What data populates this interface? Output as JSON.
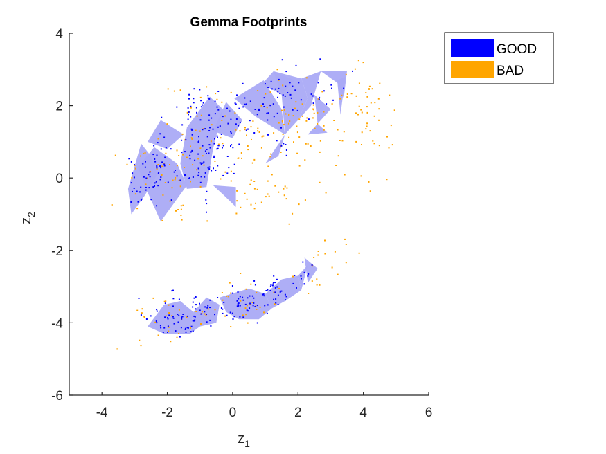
{
  "chart_data": {
    "type": "scatter",
    "title": "Gemma Footprints",
    "xlabel": {
      "base": "z",
      "sub": "1"
    },
    "ylabel": {
      "base": "z",
      "sub": "2"
    },
    "xlim": [
      -5,
      6
    ],
    "ylim": [
      -6,
      4
    ],
    "xticks": [
      -4,
      -2,
      0,
      2,
      4,
      6
    ],
    "yticks": [
      -6,
      -4,
      -2,
      0,
      2,
      4
    ],
    "xtick_labels": [
      "-4",
      "-2",
      "0",
      "2",
      "4",
      "6"
    ],
    "ytick_labels": [
      "-6",
      "-4",
      "-2",
      "0",
      "2",
      "4"
    ],
    "grid": false,
    "legend_position": "outside top-right",
    "legend": [
      {
        "label": "GOOD",
        "color": "#0000ff"
      },
      {
        "label": "BAD",
        "color": "#ffa500"
      }
    ],
    "footprint_color": "#aaaaf5",
    "footprints": [
      [
        [
          -3.2,
          -0.3
        ],
        [
          -2.8,
          0.95
        ],
        [
          -2.5,
          0.6
        ],
        [
          -2.3,
          0.1
        ],
        [
          -2.7,
          -0.5
        ],
        [
          -3.1,
          -1.0
        ]
      ],
      [
        [
          -2.2,
          1.6
        ],
        [
          -1.5,
          1.2
        ],
        [
          -2.0,
          0.8
        ],
        [
          -2.6,
          1.0
        ]
      ],
      [
        [
          -2.4,
          0.85
        ],
        [
          -1.7,
          0.4
        ],
        [
          -1.4,
          -0.2
        ],
        [
          -2.2,
          -1.2
        ],
        [
          -2.6,
          -0.4
        ],
        [
          -2.9,
          0.3
        ]
      ],
      [
        [
          -1.4,
          1.4
        ],
        [
          -0.7,
          2.25
        ],
        [
          -0.3,
          1.9
        ],
        [
          -0.6,
          0.8
        ],
        [
          -0.8,
          -0.25
        ],
        [
          -1.4,
          -0.3
        ],
        [
          -1.6,
          0.4
        ]
      ],
      [
        [
          -0.2,
          2.1
        ],
        [
          0.3,
          1.6
        ],
        [
          0.0,
          1.1
        ],
        [
          -0.6,
          1.3
        ]
      ],
      [
        [
          -0.6,
          -0.2
        ],
        [
          0.1,
          -0.25
        ],
        [
          0.1,
          -0.8
        ],
        [
          -0.3,
          -0.45
        ]
      ],
      [
        [
          0.05,
          2.2
        ],
        [
          0.95,
          2.7
        ],
        [
          1.5,
          1.9
        ],
        [
          1.6,
          1.2
        ],
        [
          0.7,
          1.7
        ]
      ],
      [
        [
          0.9,
          2.6
        ],
        [
          1.25,
          2.95
        ],
        [
          1.9,
          2.7
        ],
        [
          1.5,
          2.3
        ]
      ],
      [
        [
          1.25,
          2.95
        ],
        [
          2.1,
          2.75
        ],
        [
          2.3,
          2.2
        ],
        [
          2.0,
          1.6
        ],
        [
          1.6,
          1.2
        ],
        [
          1.5,
          2.3
        ]
      ],
      [
        [
          2.1,
          2.75
        ],
        [
          2.7,
          2.95
        ],
        [
          2.4,
          2.0
        ],
        [
          2.0,
          1.6
        ],
        [
          2.3,
          2.2
        ]
      ],
      [
        [
          2.5,
          2.3
        ],
        [
          3.0,
          1.9
        ],
        [
          2.6,
          1.5
        ]
      ],
      [
        [
          2.7,
          2.95
        ],
        [
          3.5,
          2.95
        ],
        [
          3.4,
          2.2
        ],
        [
          3.25,
          2.6
        ]
      ],
      [
        [
          3.2,
          2.7
        ],
        [
          3.45,
          2.8
        ],
        [
          3.3,
          1.75
        ]
      ],
      [
        [
          2.3,
          1.2
        ],
        [
          2.9,
          1.25
        ],
        [
          2.6,
          1.5
        ]
      ],
      [
        [
          1.0,
          0.4
        ],
        [
          1.6,
          1.2
        ],
        [
          1.4,
          0.6
        ]
      ],
      [
        [
          -2.6,
          -4.1
        ],
        [
          -2.1,
          -3.5
        ],
        [
          -1.6,
          -3.4
        ],
        [
          -1.2,
          -3.7
        ],
        [
          -1.3,
          -4.3
        ],
        [
          -2.1,
          -4.3
        ]
      ],
      [
        [
          -1.2,
          -3.7
        ],
        [
          -0.8,
          -3.3
        ],
        [
          -0.4,
          -3.5
        ],
        [
          -0.5,
          -4.0
        ],
        [
          -1.0,
          -4.1
        ],
        [
          -1.3,
          -4.3
        ]
      ],
      [
        [
          -0.4,
          -3.3
        ],
        [
          0.5,
          -3.05
        ],
        [
          1.0,
          -3.2
        ],
        [
          1.2,
          -3.6
        ],
        [
          0.8,
          -3.9
        ],
        [
          0.2,
          -3.9
        ],
        [
          -0.2,
          -3.7
        ]
      ],
      [
        [
          1.0,
          -3.2
        ],
        [
          1.5,
          -2.8
        ],
        [
          2.0,
          -2.7
        ],
        [
          2.1,
          -3.1
        ],
        [
          1.6,
          -3.4
        ],
        [
          1.2,
          -3.6
        ]
      ],
      [
        [
          2.0,
          -2.7
        ],
        [
          2.3,
          -2.4
        ],
        [
          2.1,
          -3.1
        ]
      ],
      [
        [
          2.2,
          -2.2
        ],
        [
          2.6,
          -2.5
        ],
        [
          2.3,
          -2.9
        ]
      ]
    ],
    "series": [
      {
        "name": "GOOD",
        "color": "#0000ff",
        "clusters": [
          {
            "cx": -2.8,
            "cy": -0.2,
            "sx": 0.25,
            "sy": 0.45,
            "n": 28
          },
          {
            "cx": -2.3,
            "cy": 0.4,
            "sx": 0.35,
            "sy": 0.45,
            "n": 30
          },
          {
            "cx": -1.0,
            "cy": 1.0,
            "sx": 0.45,
            "sy": 0.75,
            "n": 95
          },
          {
            "cx": -0.3,
            "cy": 1.3,
            "sx": 0.4,
            "sy": 0.5,
            "n": 35
          },
          {
            "cx": 0.6,
            "cy": 1.8,
            "sx": 0.45,
            "sy": 0.35,
            "n": 25
          },
          {
            "cx": 1.2,
            "cy": 2.35,
            "sx": 0.3,
            "sy": 0.3,
            "n": 15
          },
          {
            "cx": 1.9,
            "cy": 2.3,
            "sx": 0.35,
            "sy": 0.35,
            "n": 20
          },
          {
            "cx": 2.9,
            "cy": 2.5,
            "sx": 0.35,
            "sy": 0.3,
            "n": 12
          },
          {
            "cx": 1.4,
            "cy": 0.8,
            "sx": 0.2,
            "sy": 0.25,
            "n": 6
          },
          {
            "cx": -1.9,
            "cy": -3.9,
            "sx": 0.45,
            "sy": 0.3,
            "n": 45
          },
          {
            "cx": -0.9,
            "cy": -3.75,
            "sx": 0.35,
            "sy": 0.25,
            "n": 30
          },
          {
            "cx": 0.3,
            "cy": -3.5,
            "sx": 0.45,
            "sy": 0.25,
            "n": 40
          },
          {
            "cx": 1.3,
            "cy": -3.1,
            "sx": 0.35,
            "sy": 0.25,
            "n": 30
          },
          {
            "cx": 2.2,
            "cy": -2.7,
            "sx": 0.2,
            "sy": 0.2,
            "n": 10
          }
        ]
      },
      {
        "name": "BAD",
        "color": "#ffa500",
        "clusters": [
          {
            "cx": -2.2,
            "cy": 0.3,
            "sx": 0.7,
            "sy": 0.5,
            "n": 35
          },
          {
            "cx": 0.0,
            "cy": 1.2,
            "sx": 1.2,
            "sy": 0.8,
            "n": 90
          },
          {
            "cx": 0.8,
            "cy": -0.5,
            "sx": 0.7,
            "sy": 0.4,
            "n": 25
          },
          {
            "cx": 2.2,
            "cy": 1.6,
            "sx": 0.7,
            "sy": 0.6,
            "n": 50
          },
          {
            "cx": 4.1,
            "cy": 1.7,
            "sx": 0.5,
            "sy": 0.7,
            "n": 45
          },
          {
            "cx": 3.3,
            "cy": 0.6,
            "sx": 0.6,
            "sy": 0.5,
            "n": 12
          },
          {
            "cx": -1.4,
            "cy": -0.8,
            "sx": 0.5,
            "sy": 0.3,
            "n": 10
          },
          {
            "cx": -1.6,
            "cy": -3.9,
            "sx": 0.9,
            "sy": 0.35,
            "n": 35
          },
          {
            "cx": 0.6,
            "cy": -3.4,
            "sx": 0.8,
            "sy": 0.3,
            "n": 30
          },
          {
            "cx": 2.6,
            "cy": -2.5,
            "sx": 0.3,
            "sy": 0.35,
            "n": 12
          },
          {
            "cx": 3.3,
            "cy": -1.9,
            "sx": 0.3,
            "sy": 0.3,
            "n": 5
          }
        ]
      }
    ]
  }
}
